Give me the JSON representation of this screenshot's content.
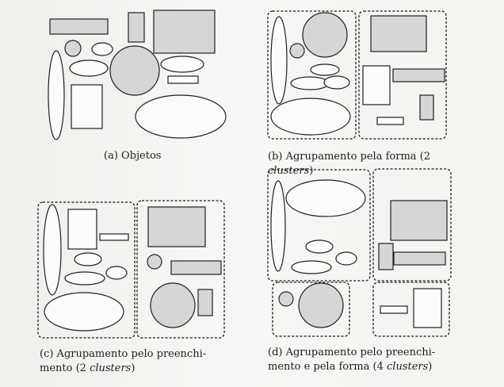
{
  "captions": {
    "a": {
      "text": "(a) Objetos"
    },
    "b": {
      "line1": "(b) Agrupamento pela forma (2",
      "line2_italic": "clusters",
      "line2_close": ")"
    },
    "c": {
      "line1": "(c) Agrupamento pelo preenchi-",
      "line2_pre": "mento (2 ",
      "line2_italic": "clusters",
      "line2_close": ")"
    },
    "d": {
      "line1": "(d) Agrupamento pelo preenchi-",
      "line2_pre": "mento e pela forma (4 ",
      "line2_italic": "clusters",
      "line2_close": ")"
    }
  },
  "colors": {
    "fill_gray": "#d6d6d6",
    "fill_white": "#fbfbfb",
    "stroke": "#202020"
  }
}
